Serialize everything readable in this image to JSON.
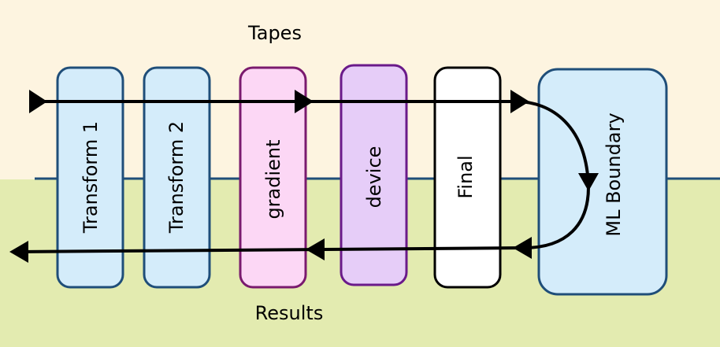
{
  "diagram": {
    "top_label": "Tapes",
    "bottom_label": "Results",
    "colors": {
      "top_band": "#fdf4e0",
      "bottom_band": "#e3ebb0",
      "divider": "#1f4e79",
      "arrow": "#000000"
    },
    "boxes": [
      {
        "label": "Transform 1",
        "fill": "#d4ecfa",
        "stroke": "#1f4e79"
      },
      {
        "label": "Transform 2",
        "fill": "#d4ecfa",
        "stroke": "#1f4e79"
      },
      {
        "label": "gradient",
        "fill": "#fcd7f5",
        "stroke": "#7a1a6e"
      },
      {
        "label": "device",
        "fill": "#e6cdf8",
        "stroke": "#6a1a8a"
      },
      {
        "label": "Final",
        "fill": "#ffffff",
        "stroke": "#000000"
      },
      {
        "label": "ML Boundary",
        "fill": "#d4ecfa",
        "stroke": "#1f4e79"
      }
    ]
  }
}
